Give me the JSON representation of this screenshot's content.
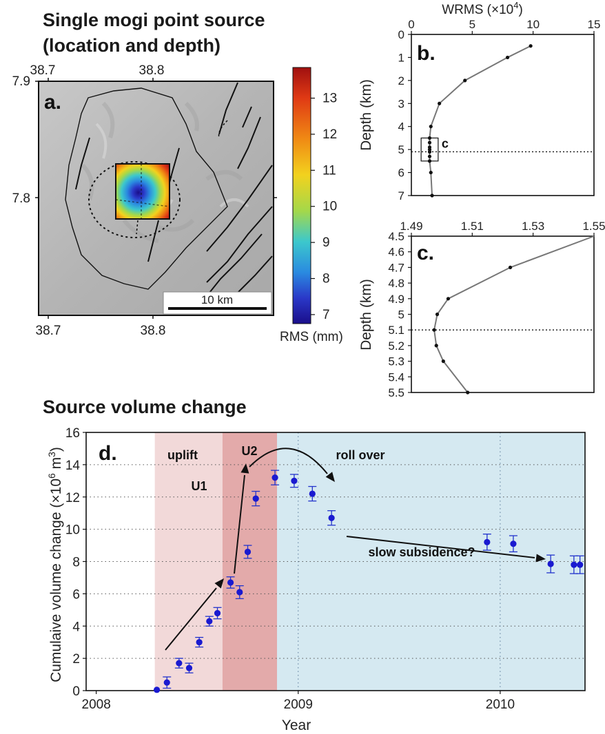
{
  "titles": {
    "top_line1": "Single mogi point source",
    "top_line2": "(location and depth)",
    "bottom": "Source volume change"
  },
  "panel_labels": {
    "a": "a.",
    "b": "b.",
    "c": "c.",
    "d": "d."
  },
  "map": {
    "lon_ticks": [
      "38.7",
      "38.8"
    ],
    "lat_ticks": [
      "7.9",
      "7.8"
    ],
    "scale_bar": "10 km",
    "colorbar_ticks": [
      "13",
      "12",
      "11",
      "10",
      "9",
      "8",
      "7"
    ],
    "colorbar_label": "RMS (mm)",
    "colorbar_colors": [
      "#b01818",
      "#e03a14",
      "#f08a14",
      "#f2d21e",
      "#a4d84a",
      "#3cc8cc",
      "#2a8ae0",
      "#2a38c8",
      "#1a0e8a"
    ]
  },
  "box_label": "c",
  "chart_data": [
    {
      "type": "line",
      "panel": "b",
      "xlabel": "WRMS (×10",
      "xlabel_exp": "4",
      "xlabel_close": ")",
      "ylabel": "Depth (km)",
      "xlim": [
        0,
        15
      ],
      "ylim": [
        0,
        7
      ],
      "x_ticks": [
        "0",
        "5",
        "10",
        "15"
      ],
      "y_ticks": [
        "0",
        "1",
        "2",
        "3",
        "4",
        "5",
        "6",
        "7"
      ],
      "points": [
        {
          "depth": 0.5,
          "wrms": 9.8
        },
        {
          "depth": 1.0,
          "wrms": 7.9
        },
        {
          "depth": 2.0,
          "wrms": 4.4
        },
        {
          "depth": 3.0,
          "wrms": 2.3
        },
        {
          "depth": 4.0,
          "wrms": 1.6
        },
        {
          "depth": 4.5,
          "wrms": 1.5
        },
        {
          "depth": 4.7,
          "wrms": 1.5
        },
        {
          "depth": 4.9,
          "wrms": 1.5
        },
        {
          "depth": 5.0,
          "wrms": 1.5
        },
        {
          "depth": 5.1,
          "wrms": 1.5
        },
        {
          "depth": 5.3,
          "wrms": 1.5
        },
        {
          "depth": 5.5,
          "wrms": 1.5
        },
        {
          "depth": 6.0,
          "wrms": 1.6
        },
        {
          "depth": 7.0,
          "wrms": 1.7
        }
      ],
      "best_depth": 5.1
    },
    {
      "type": "line",
      "panel": "c",
      "ylabel": "Depth (km)",
      "xlim": [
        1.49,
        1.55
      ],
      "ylim": [
        4.5,
        5.5
      ],
      "x_ticks": [
        "1.49",
        "1.51",
        "1.53",
        "1.55"
      ],
      "y_ticks": [
        "4.5",
        "4.6",
        "4.7",
        "4.8",
        "4.9",
        "5",
        "5.1",
        "5.2",
        "5.3",
        "5.4",
        "5.5"
      ],
      "points": [
        {
          "depth": 4.5,
          "wrms": 1.5505
        },
        {
          "depth": 4.7,
          "wrms": 1.5225
        },
        {
          "depth": 4.9,
          "wrms": 1.5021
        },
        {
          "depth": 5.0,
          "wrms": 1.4985
        },
        {
          "depth": 5.1,
          "wrms": 1.4975
        },
        {
          "depth": 5.2,
          "wrms": 1.4982
        },
        {
          "depth": 5.3,
          "wrms": 1.5005
        },
        {
          "depth": 5.5,
          "wrms": 1.5085
        }
      ],
      "best_depth": 5.1
    },
    {
      "type": "scatter",
      "panel": "d",
      "xlabel": "Year",
      "ylabel": "Cumulaive volume change (×10",
      "ylabel_exp1": "6",
      "ylabel_mid": " m",
      "ylabel_exp2": "3",
      "ylabel_close": ")",
      "xlim": [
        2007.95,
        2010.42
      ],
      "ylim": [
        0,
        16
      ],
      "x_ticks": [
        "2008",
        "2009",
        "2010"
      ],
      "y_ticks": [
        "0",
        "2",
        "4",
        "6",
        "8",
        "10",
        "12",
        "14",
        "16"
      ],
      "shading": [
        {
          "name": "uplift U1",
          "from": 2008.29,
          "to": 2008.625,
          "color": "#f2d9d9"
        },
        {
          "name": "uplift U2",
          "from": 2008.625,
          "to": 2008.895,
          "color": "#e3aaaa"
        },
        {
          "name": "roll over / subsidence",
          "from": 2008.895,
          "to": 2010.42,
          "color": "#d5e9f1"
        }
      ],
      "annotations": [
        "uplift",
        "U1",
        "U2",
        "roll over",
        "slow subsidence?"
      ],
      "points": [
        {
          "x": 2008.3,
          "y": 0.05,
          "err": 0.0
        },
        {
          "x": 2008.35,
          "y": 0.5,
          "err": 0.35
        },
        {
          "x": 2008.41,
          "y": 1.7,
          "err": 0.3
        },
        {
          "x": 2008.46,
          "y": 1.4,
          "err": 0.3
        },
        {
          "x": 2008.51,
          "y": 3.0,
          "err": 0.3
        },
        {
          "x": 2008.56,
          "y": 4.3,
          "err": 0.3
        },
        {
          "x": 2008.6,
          "y": 4.8,
          "err": 0.35
        },
        {
          "x": 2008.665,
          "y": 6.7,
          "err": 0.35
        },
        {
          "x": 2008.71,
          "y": 6.1,
          "err": 0.4
        },
        {
          "x": 2008.75,
          "y": 8.6,
          "err": 0.4
        },
        {
          "x": 2008.79,
          "y": 11.9,
          "err": 0.45
        },
        {
          "x": 2008.885,
          "y": 13.2,
          "err": 0.45
        },
        {
          "x": 2008.98,
          "y": 13.0,
          "err": 0.4
        },
        {
          "x": 2009.07,
          "y": 12.2,
          "err": 0.45
        },
        {
          "x": 2009.165,
          "y": 10.7,
          "err": 0.45
        },
        {
          "x": 2009.935,
          "y": 9.2,
          "err": 0.5
        },
        {
          "x": 2010.065,
          "y": 9.1,
          "err": 0.5
        },
        {
          "x": 2010.25,
          "y": 7.85,
          "err": 0.55
        },
        {
          "x": 2010.365,
          "y": 7.8,
          "err": 0.55
        },
        {
          "x": 2010.395,
          "y": 7.8,
          "err": 0.55
        }
      ]
    }
  ]
}
